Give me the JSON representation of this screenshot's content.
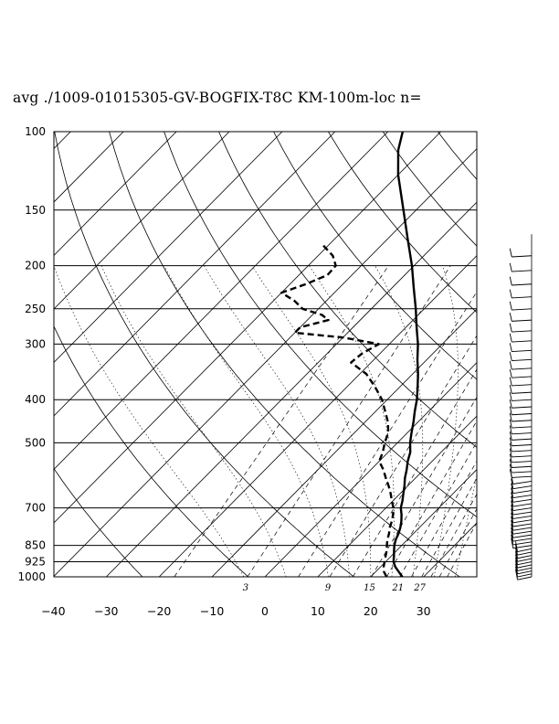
{
  "chart_data": {
    "type": "line",
    "title": "avg ./1009-01015305-GV-BOGFIX-T8C KM-100m-loc n=",
    "xlabel": "",
    "ylabel": "",
    "x_axis": {
      "range": [
        -40,
        40
      ],
      "ticks": [
        -40,
        -30,
        -20,
        -10,
        0,
        10,
        20,
        30
      ],
      "tick_labels": [
        "−40",
        "−30",
        "−20",
        "−10",
        "0",
        "10",
        "20",
        "30"
      ],
      "unit": "degC",
      "skew": true
    },
    "y_axis": {
      "range": [
        1000,
        100
      ],
      "scale": "log",
      "ticks": [
        100,
        150,
        200,
        250,
        300,
        400,
        500,
        700,
        850,
        925,
        1000
      ],
      "tick_labels": [
        "100",
        "150",
        "200",
        "250",
        "300",
        "400",
        "500",
        "700",
        "850",
        "925",
        "1000"
      ],
      "unit": "hPa"
    },
    "mixing_ratio_labels": [
      "3",
      "9",
      "15",
      "21",
      "27"
    ],
    "grid": true,
    "series": [
      {
        "role": "temperature",
        "style": "solid",
        "points": [
          [
            1000,
            26.0
          ],
          [
            975,
            24.4
          ],
          [
            950,
            22.8
          ],
          [
            925,
            21.5
          ],
          [
            900,
            20.6
          ],
          [
            875,
            19.6
          ],
          [
            850,
            18.6
          ],
          [
            825,
            17.8
          ],
          [
            800,
            17.2
          ],
          [
            775,
            16.4
          ],
          [
            750,
            15.4
          ],
          [
            725,
            14.2
          ],
          [
            700,
            12.8
          ],
          [
            675,
            11.8
          ],
          [
            650,
            10.6
          ],
          [
            625,
            9.4
          ],
          [
            600,
            8.0
          ],
          [
            575,
            6.8
          ],
          [
            550,
            5.4
          ],
          [
            525,
            4.2
          ],
          [
            500,
            2.4
          ],
          [
            475,
            0.8
          ],
          [
            450,
            -0.8
          ],
          [
            425,
            -2.6
          ],
          [
            400,
            -4.4
          ],
          [
            375,
            -6.6
          ],
          [
            350,
            -9.0
          ],
          [
            325,
            -11.8
          ],
          [
            300,
            -14.6
          ],
          [
            275,
            -18.0
          ],
          [
            250,
            -21.6
          ],
          [
            225,
            -25.8
          ],
          [
            200,
            -30.4
          ],
          [
            175,
            -36.0
          ],
          [
            150,
            -42.4
          ],
          [
            125,
            -50.0
          ],
          [
            110,
            -54.6
          ],
          [
            100,
            -57.2
          ]
        ]
      },
      {
        "role": "dewpoint",
        "style": "dashed",
        "points": [
          [
            1000,
            23.0
          ],
          [
            975,
            21.6
          ],
          [
            950,
            20.6
          ],
          [
            925,
            19.8
          ],
          [
            900,
            19.0
          ],
          [
            875,
            18.2
          ],
          [
            850,
            17.2
          ],
          [
            825,
            16.2
          ],
          [
            800,
            15.4
          ],
          [
            775,
            14.4
          ],
          [
            750,
            13.6
          ],
          [
            725,
            12.6
          ],
          [
            700,
            11.4
          ],
          [
            675,
            9.8
          ],
          [
            650,
            8.2
          ],
          [
            625,
            6.4
          ],
          [
            600,
            4.4
          ],
          [
            575,
            2.4
          ],
          [
            550,
            0.0
          ],
          [
            525,
            -1.0
          ],
          [
            500,
            -2.4
          ],
          [
            475,
            -3.6
          ],
          [
            450,
            -5.6
          ],
          [
            425,
            -8.2
          ],
          [
            400,
            -11.0
          ],
          [
            375,
            -14.6
          ],
          [
            350,
            -18.8
          ],
          [
            330,
            -23.8
          ],
          [
            315,
            -23.4
          ],
          [
            300,
            -22.0
          ],
          [
            290,
            -30.0
          ],
          [
            283,
            -40.0
          ],
          [
            275,
            -40.0
          ],
          [
            265,
            -36.0
          ],
          [
            258,
            -38.2
          ],
          [
            250,
            -43.0
          ],
          [
            240,
            -46.0
          ],
          [
            230,
            -50.0
          ],
          [
            220,
            -47.0
          ],
          [
            210,
            -44.6
          ],
          [
            200,
            -44.8
          ],
          [
            190,
            -47.2
          ],
          [
            180,
            -51.0
          ]
        ]
      }
    ],
    "wind_barbs_note": "",
    "colors": {
      "line": "#000000",
      "background": "#ffffff"
    }
  }
}
